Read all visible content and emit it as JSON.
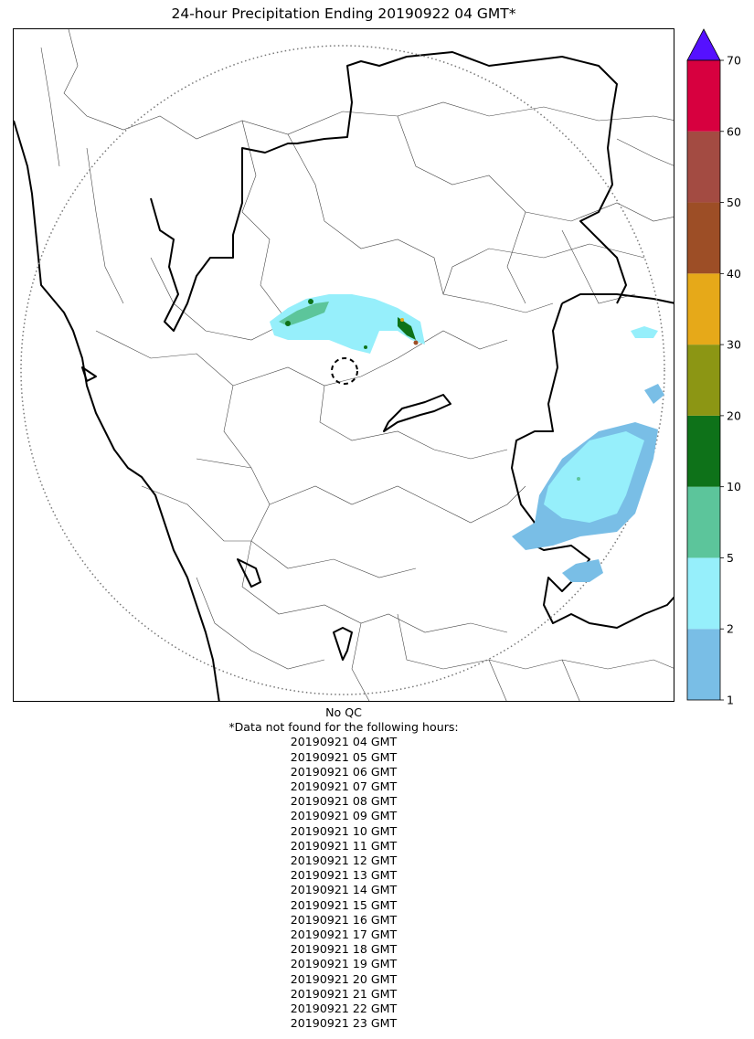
{
  "title": "24-hour Precipitation Ending 20190922 04 GMT*",
  "colorbar": {
    "ticks": [
      "1",
      "2",
      "5",
      "10",
      "20",
      "30",
      "40",
      "50",
      "60",
      "70"
    ],
    "colors": [
      "#79bee6",
      "#96effb",
      "#5cc59b",
      "#0e7219",
      "#8c9614",
      "#e6a919",
      "#9d4e26",
      "#a34b42",
      "#d7003f"
    ],
    "extend_color": "#5511ff"
  },
  "footer": {
    "qc_note": "No QC",
    "missing_note": "*Data not found for the following hours:",
    "missing_hours": [
      "20190921 04 GMT",
      "20190921 05 GMT",
      "20190921 06 GMT",
      "20190921 07 GMT",
      "20190921 08 GMT",
      "20190921 09 GMT",
      "20190921 10 GMT",
      "20190921 11 GMT",
      "20190921 12 GMT",
      "20190921 13 GMT",
      "20190921 14 GMT",
      "20190921 15 GMT",
      "20190921 16 GMT",
      "20190921 17 GMT",
      "20190921 18 GMT",
      "20190921 19 GMT",
      "20190921 20 GMT",
      "20190921 21 GMT",
      "20190921 22 GMT",
      "20190921 23 GMT"
    ]
  }
}
